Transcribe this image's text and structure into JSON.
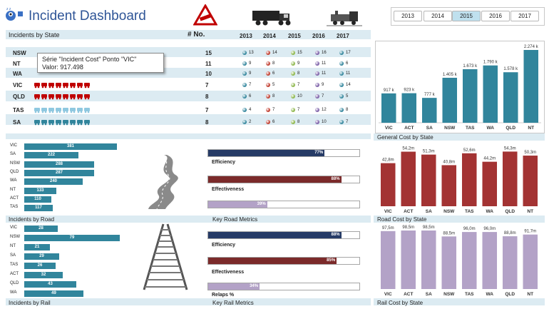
{
  "header": {
    "title": "Incident Dashboard",
    "years": [
      "2013",
      "2014",
      "2015",
      "2016",
      "2017"
    ],
    "active_year": "2015"
  },
  "state_table": {
    "section_title": "Incidents by State",
    "count_header": "# No.",
    "year_headers": [
      "2013",
      "2014",
      "2015",
      "2016",
      "2017"
    ],
    "rows": [
      {
        "state": "NSW",
        "count": "15",
        "vals": [
          "13",
          "14",
          "15",
          "16",
          "17"
        ]
      },
      {
        "state": "NT",
        "count": "11",
        "vals": [
          "9",
          "8",
          "9",
          "11",
          "6"
        ]
      },
      {
        "state": "WA",
        "count": "10",
        "vals": [
          "9",
          "6",
          "8",
          "11",
          "11"
        ]
      },
      {
        "state": "VIC",
        "count": "7",
        "vals": [
          "7",
          "5",
          "7",
          "9",
          "14"
        ]
      },
      {
        "state": "QLD",
        "count": "8",
        "vals": [
          "6",
          "8",
          "10",
          "7",
          "5"
        ]
      },
      {
        "state": "TAS",
        "count": "7",
        "vals": [
          "4",
          "7",
          "7",
          "12",
          "8"
        ]
      },
      {
        "state": "SA",
        "count": "8",
        "vals": [
          "2",
          "6",
          "8",
          "10",
          "7"
        ]
      }
    ],
    "dot_colors": [
      "#31859c",
      "#c0392b",
      "#8cb64a",
      "#7b5ea7",
      "#31859c"
    ]
  },
  "tooltip": {
    "line1": "Série \"Incident Cost\" Ponto \"VIC\"",
    "line2": "Valor: 917.498"
  },
  "incident_cost_chart": {
    "type": "bar",
    "categories": [
      "VIC",
      "ACT",
      "SA",
      "NSW",
      "TAS",
      "WA",
      "QLD",
      "NT"
    ],
    "values": [
      917,
      923,
      777,
      1405,
      1673,
      1790,
      1578,
      2274
    ],
    "labels": [
      "917 k",
      "923 k",
      "777 k",
      "1.405 k",
      "1.673 k",
      "1.790 k",
      "1.578 k",
      "2.274 k"
    ],
    "color": "#31859c"
  },
  "road": {
    "section_title": "Incidents by Road",
    "metrics_title": "Key Road Metrics",
    "bars": [
      {
        "state": "VIC",
        "value": 381
      },
      {
        "state": "SA",
        "value": 222
      },
      {
        "state": "NSW",
        "value": 288
      },
      {
        "state": "QLD",
        "value": 287
      },
      {
        "state": "WA",
        "value": 240
      },
      {
        "state": "NT",
        "value": 133
      },
      {
        "state": "ACT",
        "value": 110
      },
      {
        "state": "TAS",
        "value": 117
      }
    ],
    "metrics": [
      {
        "label": "Efficiency",
        "pct": 77,
        "text": "77%",
        "color": "#263b66"
      },
      {
        "label": "Effectiveness",
        "pct": 88,
        "text": "88%",
        "color": "#7b2a2a"
      },
      {
        "label": "",
        "pct": 39,
        "text": "39%",
        "color": "#b3a2c7"
      }
    ]
  },
  "rail": {
    "section_title": "Incidents by Rail",
    "metrics_title": "Key Rail Metrics",
    "bars": [
      {
        "state": "VIC",
        "value": 28
      },
      {
        "state": "NSW",
        "value": 79
      },
      {
        "state": "NT",
        "value": 21
      },
      {
        "state": "SA",
        "value": 29
      },
      {
        "state": "TAS",
        "value": 26
      },
      {
        "state": "ACT",
        "value": 32
      },
      {
        "state": "QLD",
        "value": 43
      },
      {
        "state": "WA",
        "value": 49
      }
    ],
    "metrics": [
      {
        "label": "Efficiency",
        "pct": 88,
        "text": "88%",
        "color": "#263b66"
      },
      {
        "label": "Effectiveness",
        "pct": 85,
        "text": "85%",
        "color": "#7b2a2a"
      },
      {
        "label": "Relaps %",
        "pct": 34,
        "text": "34%",
        "color": "#b3a2c7"
      }
    ]
  },
  "general_cost_chart": {
    "title": "General Cost by State",
    "type": "bar",
    "categories": [
      "VIC",
      "ACT",
      "SA",
      "NSW",
      "TAS",
      "WA",
      "QLD",
      "NT"
    ],
    "values": [
      42.8,
      54.2,
      51.3,
      40.8,
      52.6,
      44.2,
      54.3,
      50.3
    ],
    "labels": [
      "42,8m",
      "54,2m",
      "51,3m",
      "40,8m",
      "52,6m",
      "44,2m",
      "54,3m",
      "50,3m"
    ],
    "color": "#a33333"
  },
  "road_cost_chart": {
    "title": "Road Cost by State",
    "type": "bar",
    "categories": [
      "VIC",
      "ACT",
      "SA",
      "NSW",
      "TAS",
      "WA",
      "QLD",
      "NT"
    ],
    "values": [
      97.5,
      98.5,
      98.5,
      88.5,
      96.0,
      96.0,
      88.8,
      91.7
    ],
    "labels": [
      "97,5m",
      "98,5m",
      "98,5m",
      "88,5m",
      "96,0m",
      "96,0m",
      "88,8m",
      "91,7m"
    ],
    "color": "#b3a2c7"
  },
  "rail_cost": {
    "title": "Rail Cost by State"
  }
}
